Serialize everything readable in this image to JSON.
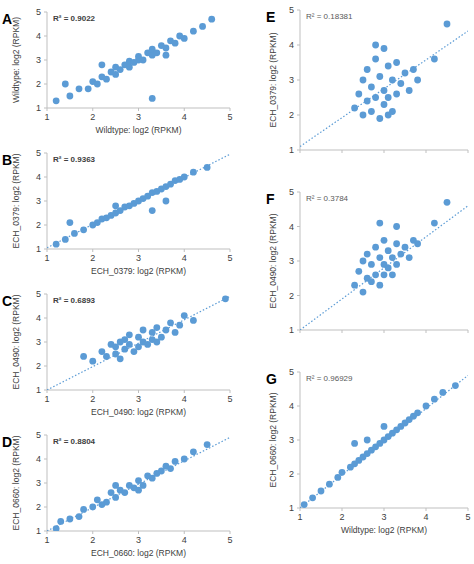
{
  "chart_data": [
    {
      "type": "scatter",
      "title": "A",
      "annotation": "R² = 0.9022",
      "x_label": "Wildtype: log2 (RPKM)",
      "y_label": "Wildtype: log2 (RPKM)",
      "xlim": [
        1,
        5
      ],
      "ylim": [
        1,
        5
      ],
      "xticks": [
        1,
        2,
        3,
        4,
        5
      ],
      "yticks": [
        1,
        2,
        3,
        4,
        5
      ],
      "series": [
        {
          "type": "scatter",
          "color": "#5b9bd5",
          "marker": "circle",
          "x": [
            1.2,
            1.5,
            1.7,
            1.9,
            2.0,
            2.1,
            2.2,
            2.3,
            2.4,
            2.5,
            2.5,
            2.6,
            2.7,
            2.8,
            2.8,
            2.9,
            3.0,
            3.0,
            3.1,
            3.2,
            3.3,
            3.3,
            3.4,
            3.5,
            3.6,
            3.7,
            3.8,
            3.9,
            4.0,
            4.2,
            4.4,
            4.6,
            1.4,
            3.3,
            2.2,
            3.6
          ],
          "values": [
            1.3,
            1.5,
            1.8,
            1.8,
            2.1,
            2.0,
            2.3,
            2.2,
            2.5,
            2.4,
            2.7,
            2.6,
            2.8,
            2.7,
            2.95,
            2.9,
            3.0,
            3.15,
            3.0,
            3.3,
            3.2,
            3.45,
            3.3,
            3.6,
            3.5,
            3.8,
            3.7,
            4.0,
            3.9,
            4.2,
            4.4,
            4.7,
            2.0,
            1.4,
            2.8,
            3.2
          ]
        }
      ]
    },
    {
      "type": "scatter",
      "title": "B",
      "annotation": "R² = 0.9363",
      "x_label": "ECH_0379: log2 (RPKM)",
      "y_label": "ECH_0379: log2 (RPKM)",
      "xlim": [
        1,
        5
      ],
      "ylim": [
        1,
        5
      ],
      "xticks": [
        1,
        2,
        3,
        4,
        5
      ],
      "yticks": [
        1,
        2,
        3,
        4,
        5
      ],
      "series": [
        {
          "type": "scatter",
          "color": "#5b9bd5",
          "marker": "circle",
          "x": [
            1.2,
            1.4,
            1.6,
            1.8,
            2.0,
            2.1,
            2.2,
            2.3,
            2.4,
            2.5,
            2.6,
            2.7,
            2.8,
            2.9,
            3.0,
            3.1,
            3.2,
            3.3,
            3.4,
            3.5,
            3.6,
            3.7,
            3.8,
            3.9,
            4.0,
            4.2,
            4.5,
            3.3,
            3.6,
            1.5,
            2.5
          ],
          "values": [
            1.2,
            1.4,
            1.65,
            1.8,
            2.0,
            2.1,
            2.25,
            2.3,
            2.4,
            2.5,
            2.6,
            2.75,
            2.8,
            2.9,
            3.0,
            3.1,
            3.2,
            3.35,
            3.4,
            3.5,
            3.6,
            3.7,
            3.85,
            3.9,
            4.0,
            4.2,
            4.4,
            2.6,
            3.0,
            2.1,
            2.8
          ]
        },
        {
          "type": "line",
          "color": "#5b9bd5",
          "line_style": "dotted",
          "x": [
            1,
            5
          ],
          "values": [
            1.05,
            4.95
          ]
        }
      ]
    },
    {
      "type": "scatter",
      "title": "C",
      "annotation": "R² = 0.6893",
      "x_label": "ECH_0490: log2 (RPKM)",
      "y_label": "ECH_0490: log2 (RPKM)",
      "xlim": [
        1,
        5
      ],
      "ylim": [
        1,
        5
      ],
      "xticks": [
        1,
        2,
        3,
        4,
        5
      ],
      "yticks": [
        1,
        2,
        3,
        4,
        5
      ],
      "series": [
        {
          "type": "scatter",
          "color": "#5b9bd5",
          "marker": "circle",
          "x": [
            1.8,
            2.0,
            2.2,
            2.3,
            2.4,
            2.5,
            2.5,
            2.6,
            2.7,
            2.7,
            2.8,
            2.8,
            2.9,
            3.0,
            3.0,
            3.1,
            3.1,
            3.2,
            3.3,
            3.3,
            3.4,
            3.5,
            3.6,
            3.7,
            3.8,
            3.9,
            4.0,
            4.2,
            4.9,
            2.6,
            3.4
          ],
          "values": [
            2.4,
            2.2,
            2.6,
            2.4,
            2.9,
            2.5,
            2.8,
            2.3,
            3.1,
            2.7,
            2.9,
            3.3,
            2.6,
            3.2,
            2.8,
            3.5,
            3.0,
            2.9,
            3.4,
            3.1,
            3.6,
            3.2,
            3.5,
            3.8,
            3.4,
            3.7,
            4.1,
            3.9,
            4.8,
            3.0,
            3.0
          ]
        },
        {
          "type": "line",
          "color": "#5b9bd5",
          "line_style": "dotted",
          "x": [
            1,
            5
          ],
          "values": [
            1.0,
            4.9
          ]
        }
      ]
    },
    {
      "type": "scatter",
      "title": "D",
      "annotation": "R² = 0.8804",
      "x_label": "ECH_0660: log2 (RPKM)",
      "y_label": "ECH_0660: log2 (RPKM)",
      "xlim": [
        1,
        5
      ],
      "ylim": [
        1,
        5
      ],
      "xticks": [
        1,
        2,
        3,
        4,
        5
      ],
      "yticks": [
        1,
        2,
        3,
        4,
        5
      ],
      "series": [
        {
          "type": "scatter",
          "color": "#5b9bd5",
          "marker": "circle",
          "x": [
            1.2,
            1.3,
            1.5,
            1.7,
            1.8,
            2.0,
            2.1,
            2.2,
            2.3,
            2.4,
            2.5,
            2.6,
            2.7,
            2.8,
            2.9,
            3.0,
            3.1,
            3.2,
            3.3,
            3.4,
            3.5,
            3.6,
            3.7,
            3.8,
            4.0,
            4.2,
            4.5,
            2.5,
            3.0
          ],
          "values": [
            1.1,
            1.4,
            1.5,
            1.6,
            1.9,
            2.0,
            2.3,
            2.1,
            2.2,
            2.6,
            2.4,
            2.7,
            2.6,
            2.9,
            2.8,
            3.1,
            2.9,
            3.3,
            3.2,
            3.4,
            3.5,
            3.7,
            3.6,
            3.9,
            4.0,
            4.3,
            4.6,
            2.9,
            2.7
          ]
        },
        {
          "type": "line",
          "color": "#5b9bd5",
          "line_style": "dotted",
          "x": [
            1,
            5
          ],
          "values": [
            1.0,
            4.9
          ]
        }
      ]
    },
    {
      "type": "scatter",
      "title": "E",
      "annotation": "R² = 0.18381",
      "y_label": "ECH_0379: log2 (RPKM)",
      "tick_labels": "y",
      "xlim": [
        1,
        5
      ],
      "ylim": [
        1,
        5
      ],
      "xticks": [
        1,
        2,
        3,
        4,
        5
      ],
      "yticks": [
        1,
        2,
        3,
        4,
        5
      ],
      "series": [
        {
          "type": "scatter",
          "color": "#5b9bd5",
          "marker": "circle",
          "x": [
            2.3,
            2.4,
            2.5,
            2.5,
            2.6,
            2.6,
            2.7,
            2.7,
            2.8,
            2.8,
            2.9,
            2.9,
            3.0,
            3.0,
            3.0,
            3.1,
            3.1,
            3.2,
            3.2,
            3.3,
            3.3,
            3.4,
            3.5,
            3.6,
            3.7,
            3.8,
            4.2,
            4.5,
            2.8,
            3.1
          ],
          "values": [
            2.2,
            2.6,
            2.0,
            3.0,
            2.4,
            3.3,
            2.1,
            2.8,
            2.5,
            3.6,
            1.9,
            3.1,
            2.3,
            2.7,
            3.9,
            2.5,
            3.4,
            2.1,
            3.0,
            2.6,
            3.5,
            2.9,
            3.2,
            2.7,
            3.3,
            3.0,
            3.6,
            4.6,
            4.0,
            2.0
          ]
        },
        {
          "type": "line",
          "color": "#5b9bd5",
          "line_style": "dotted",
          "x": [
            1,
            5
          ],
          "values": [
            1.1,
            4.4
          ]
        }
      ]
    },
    {
      "type": "scatter",
      "title": "F",
      "annotation": "R² = 0.3784",
      "y_label": "ECH_0490: log2 (RPKM)",
      "tick_labels": "y",
      "xlim": [
        1,
        5
      ],
      "ylim": [
        1,
        5
      ],
      "xticks": [
        1,
        2,
        3,
        4,
        5
      ],
      "yticks": [
        1,
        2,
        3,
        4,
        5
      ],
      "series": [
        {
          "type": "scatter",
          "color": "#5b9bd5",
          "marker": "circle",
          "x": [
            2.3,
            2.4,
            2.5,
            2.5,
            2.6,
            2.6,
            2.7,
            2.7,
            2.8,
            2.8,
            2.9,
            2.9,
            3.0,
            3.0,
            3.0,
            3.1,
            3.1,
            3.2,
            3.2,
            3.3,
            3.3,
            3.4,
            3.5,
            3.6,
            3.7,
            3.8,
            4.2,
            4.5,
            2.9,
            3.3
          ],
          "values": [
            2.3,
            2.7,
            2.1,
            3.0,
            2.5,
            3.2,
            2.4,
            2.9,
            2.6,
            3.4,
            2.3,
            3.1,
            2.6,
            2.9,
            3.6,
            2.8,
            3.3,
            2.6,
            3.1,
            2.9,
            3.5,
            3.2,
            3.4,
            3.1,
            3.6,
            3.5,
            4.1,
            4.7,
            4.1,
            4.0
          ]
        },
        {
          "type": "line",
          "color": "#5b9bd5",
          "line_style": "dotted",
          "x": [
            1,
            5
          ],
          "values": [
            1.0,
            4.6
          ]
        }
      ]
    },
    {
      "type": "scatter",
      "title": "G",
      "annotation": "R² = 0.96929",
      "x_label": "Wildtype: log2 (RPKM)",
      "y_label": "ECH_0660: log2 (RPKM)",
      "xlim": [
        1,
        5
      ],
      "ylim": [
        1,
        5
      ],
      "xticks": [
        1,
        2,
        3,
        4,
        5
      ],
      "yticks": [
        1,
        2,
        3,
        4,
        5
      ],
      "series": [
        {
          "type": "scatter",
          "color": "#5b9bd5",
          "marker": "circle",
          "x": [
            1.1,
            1.3,
            1.5,
            1.7,
            1.9,
            2.0,
            2.2,
            2.3,
            2.4,
            2.5,
            2.6,
            2.7,
            2.8,
            2.9,
            3.0,
            3.1,
            3.2,
            3.3,
            3.4,
            3.5,
            3.6,
            3.7,
            3.8,
            4.0,
            4.2,
            4.4,
            4.7,
            2.3,
            2.6,
            3.0
          ],
          "values": [
            1.1,
            1.3,
            1.5,
            1.7,
            1.9,
            2.05,
            2.2,
            2.3,
            2.4,
            2.5,
            2.6,
            2.7,
            2.8,
            2.9,
            3.0,
            3.1,
            3.2,
            3.3,
            3.4,
            3.5,
            3.6,
            3.7,
            3.8,
            4.0,
            4.2,
            4.4,
            4.6,
            2.9,
            3.0,
            3.4
          ]
        },
        {
          "type": "line",
          "color": "#5b9bd5",
          "line_style": "dotted",
          "x": [
            1,
            5
          ],
          "values": [
            1.0,
            4.9
          ]
        }
      ]
    }
  ]
}
